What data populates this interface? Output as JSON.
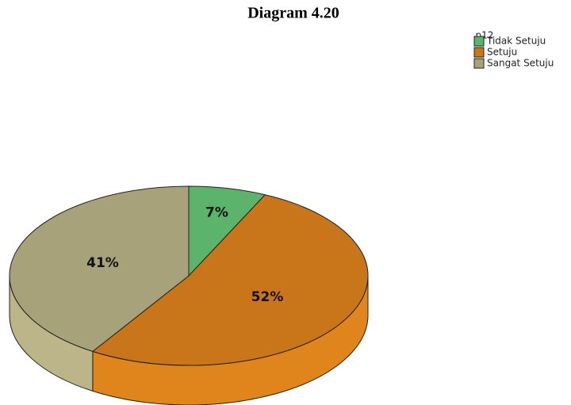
{
  "chart_data": {
    "type": "pie",
    "title": "Diagram 4.20",
    "legend_title": "p12",
    "categories": [
      "Tidak Setuju",
      "Setuju",
      "Sangat Setuju"
    ],
    "values": [
      7,
      52,
      41
    ],
    "value_labels": [
      "7%",
      "52%",
      "41%"
    ],
    "colors": [
      "#5cb36c",
      "#c87619",
      "#a8a27a"
    ],
    "legend": "top-right"
  }
}
